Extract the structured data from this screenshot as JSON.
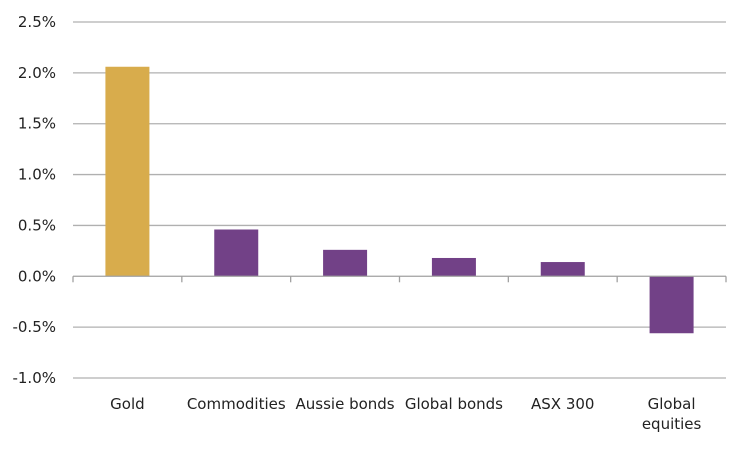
{
  "chart_data": {
    "type": "bar",
    "categories": [
      "Gold",
      "Commodities",
      "Aussie bonds",
      "Global bonds",
      "ASX 300",
      "Global equities"
    ],
    "category_label_lines": [
      [
        "Gold"
      ],
      [
        "Commodities"
      ],
      [
        "Aussie bonds"
      ],
      [
        "Global bonds"
      ],
      [
        "ASX 300"
      ],
      [
        "Global",
        "equities"
      ]
    ],
    "values": [
      2.06,
      0.46,
      0.26,
      0.18,
      0.14,
      -0.56
    ],
    "bar_colors": [
      "#D8AC4C",
      "#724187",
      "#724187",
      "#724187",
      "#724187",
      "#724187"
    ],
    "ylim": [
      -1.0,
      2.5
    ],
    "y_ticks": [
      2.5,
      2.0,
      1.5,
      1.0,
      0.5,
      0.0,
      -0.5,
      -1.0
    ],
    "y_tick_labels": [
      "2.5%",
      "2.0%",
      "1.5%",
      "1.0%",
      "0.5%",
      "0.0%",
      "-0.5%",
      "-1.0%"
    ],
    "grid": true,
    "legend": "none",
    "title": "",
    "xlabel": "",
    "ylabel": ""
  }
}
